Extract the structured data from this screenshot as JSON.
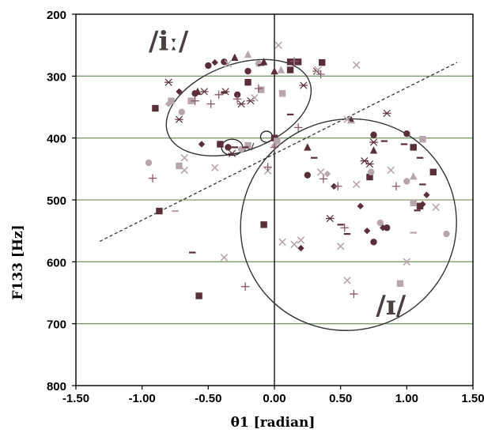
{
  "chart_data": {
    "type": "scatter",
    "title": "",
    "xlabel": "θ1 [radian]",
    "ylabel": "F133 [Hz]",
    "xlim": [
      -1.5,
      1.5
    ],
    "ylim": [
      200,
      800
    ],
    "y_reversed": true,
    "x_ticks": [
      -1.5,
      -1.0,
      -0.5,
      0.0,
      0.5,
      1.0,
      1.5
    ],
    "x_tick_labels": [
      "-1.50",
      "-1.00",
      "-0.50",
      "0.00",
      "0.50",
      "1.00",
      "1.50"
    ],
    "y_ticks": [
      200,
      300,
      400,
      500,
      600,
      700,
      800
    ],
    "y_tick_labels": [
      "200",
      "300",
      "400",
      "500",
      "600",
      "700",
      "800"
    ],
    "horizontal_gridlines": [
      300,
      400,
      500,
      600,
      700
    ],
    "gridline_color": "#7f9a6a",
    "colors": {
      "dark": "#5a2f3a",
      "mid": "#8a5a6a",
      "light": "#b8a6ad",
      "lighter": "#cfc0c5"
    },
    "regions": [
      {
        "label": "/iː/",
        "cx": -0.27,
        "cy": 351,
        "rx": 0.57,
        "ry": 70,
        "rotation_deg": -20,
        "label_x": -0.8,
        "label_y": 258
      },
      {
        "label": "/ɪ/",
        "cx": 0.56,
        "cy": 540,
        "rx": 0.82,
        "ry": 170,
        "rotation_deg": -25,
        "label_x": 0.88,
        "label_y": 685
      }
    ],
    "small_circles": [
      {
        "cx": -0.32,
        "cy": 415,
        "rx": 0.08,
        "ry": 13
      },
      {
        "cx": -0.06,
        "cy": 398,
        "rx": 0.045,
        "ry": 9
      }
    ],
    "small_labels": [
      {
        "text": "/ɪ/",
        "x": -0.19,
        "y": 418
      }
    ],
    "dashed_line": {
      "x1": -1.32,
      "y1": 567,
      "x2": 1.38,
      "y2": 278
    },
    "series": [
      {
        "marker": "square",
        "color": "dark",
        "points": [
          [
            -0.9,
            352
          ],
          [
            -0.2,
            310
          ],
          [
            0.12,
            277
          ],
          [
            0.18,
            277
          ],
          [
            0.36,
            278
          ],
          [
            0.0,
            400
          ],
          [
            1.05,
            415
          ],
          [
            1.2,
            455
          ],
          [
            0.72,
            463
          ],
          [
            -0.87,
            518
          ],
          [
            -0.57,
            655
          ],
          [
            -0.08,
            540
          ],
          [
            1.1,
            510
          ],
          [
            -0.41,
            410
          ],
          [
            0.12,
            290
          ]
        ]
      },
      {
        "marker": "square",
        "color": "light",
        "points": [
          [
            -0.78,
            340
          ],
          [
            -0.63,
            340
          ],
          [
            -0.1,
            322
          ],
          [
            0.06,
            328
          ],
          [
            -0.72,
            445
          ],
          [
            0.95,
            635
          ],
          [
            1.05,
            505
          ],
          [
            1.12,
            402
          ],
          [
            0.02,
            405
          ],
          [
            -0.2,
            412
          ]
        ]
      },
      {
        "marker": "circle",
        "color": "dark",
        "points": [
          [
            -0.5,
            283
          ],
          [
            -0.38,
            277
          ],
          [
            -0.2,
            292
          ],
          [
            -0.28,
            330
          ],
          [
            -0.6,
            328
          ],
          [
            -0.35,
            415
          ],
          [
            0.75,
            395
          ],
          [
            1.0,
            393
          ],
          [
            0.85,
            545
          ],
          [
            0.75,
            568
          ],
          [
            0.25,
            460
          ]
        ]
      },
      {
        "marker": "circle",
        "color": "light",
        "points": [
          [
            -0.95,
            440
          ],
          [
            -0.7,
            358
          ],
          [
            -0.25,
            418
          ],
          [
            0.73,
            455
          ],
          [
            1.0,
            470
          ],
          [
            1.3,
            555
          ],
          [
            -0.12,
            280
          ],
          [
            0.8,
            537
          ]
        ]
      },
      {
        "marker": "triangle",
        "color": "dark",
        "points": [
          [
            -0.3,
            270
          ],
          [
            -0.58,
            325
          ],
          [
            -0.08,
            277
          ],
          [
            0.0,
            292
          ],
          [
            0.25,
            415
          ],
          [
            0.75,
            420
          ],
          [
            0.58,
            371
          ]
        ]
      },
      {
        "marker": "triangle",
        "color": "light",
        "points": [
          [
            -0.2,
            265
          ],
          [
            1.05,
            462
          ],
          [
            0.05,
            290
          ]
        ]
      },
      {
        "marker": "diamond",
        "color": "dark",
        "points": [
          [
            -0.45,
            278
          ],
          [
            -0.72,
            325
          ],
          [
            -0.55,
            410
          ],
          [
            1.12,
            507
          ],
          [
            0.65,
            510
          ],
          [
            0.82,
            545
          ],
          [
            1.15,
            492
          ],
          [
            0.7,
            550
          ],
          [
            0.45,
            478
          ],
          [
            0.2,
            578
          ]
        ]
      },
      {
        "marker": "diamond",
        "color": "light",
        "points": [
          [
            -0.8,
            345
          ],
          [
            0.4,
            458
          ],
          [
            0.0,
            412
          ]
        ]
      },
      {
        "marker": "star",
        "color": "dark",
        "points": [
          [
            -0.8,
            310
          ],
          [
            -0.53,
            325
          ],
          [
            -0.72,
            370
          ],
          [
            -0.37,
            325
          ],
          [
            -0.25,
            345
          ],
          [
            -0.18,
            340
          ],
          [
            0.22,
            315
          ],
          [
            0.75,
            407
          ],
          [
            0.85,
            360
          ],
          [
            0.42,
            530
          ],
          [
            0.68,
            437
          ],
          [
            0.72,
            442
          ],
          [
            -0.32,
            425
          ],
          [
            0.32,
            292
          ]
        ]
      },
      {
        "marker": "x",
        "color": "light",
        "points": [
          [
            -0.35,
            280
          ],
          [
            0.03,
            250
          ],
          [
            0.33,
            290
          ],
          [
            0.62,
            282
          ],
          [
            -0.15,
            335
          ],
          [
            -0.68,
            452
          ],
          [
            -0.45,
            448
          ],
          [
            -0.68,
            432
          ],
          [
            0.35,
            455
          ],
          [
            0.5,
            575
          ],
          [
            0.55,
            630
          ],
          [
            0.55,
            370
          ],
          [
            0.88,
            452
          ],
          [
            1.0,
            600
          ],
          [
            -0.38,
            593
          ],
          [
            0.15,
            572
          ],
          [
            -0.05,
            453
          ],
          [
            1.22,
            512
          ],
          [
            0.62,
            475
          ],
          [
            0.2,
            565
          ],
          [
            0.06,
            568
          ]
        ]
      },
      {
        "marker": "plus",
        "color": "mid",
        "points": [
          [
            -0.6,
            340
          ],
          [
            -0.48,
            345
          ],
          [
            -0.42,
            330
          ],
          [
            -0.28,
            337
          ],
          [
            -0.12,
            320
          ],
          [
            0.15,
            276
          ],
          [
            0.35,
            297
          ],
          [
            0.48,
            478
          ],
          [
            0.53,
            545
          ],
          [
            0.37,
            466
          ],
          [
            0.92,
            478
          ],
          [
            -0.92,
            465
          ],
          [
            -0.22,
            640
          ],
          [
            0.6,
            652
          ],
          [
            0.0,
            415
          ],
          [
            -0.05,
            447
          ],
          [
            0.18,
            383
          ]
        ]
      },
      {
        "marker": "dash",
        "color": "dark",
        "points": [
          [
            -0.38,
            327
          ],
          [
            -0.1,
            282
          ],
          [
            0.12,
            362
          ],
          [
            0.3,
            432
          ],
          [
            0.83,
            405
          ],
          [
            0.98,
            410
          ],
          [
            1.1,
            432
          ],
          [
            1.12,
            475
          ],
          [
            1.08,
            517
          ],
          [
            0.5,
            540
          ],
          [
            0.55,
            555
          ],
          [
            -0.62,
            585
          ],
          [
            -0.22,
            415
          ],
          [
            -0.3,
            415
          ]
        ]
      },
      {
        "marker": "dash",
        "color": "light",
        "points": [
          [
            -0.75,
            518
          ],
          [
            1.05,
            553
          ],
          [
            0.58,
            375
          ]
        ]
      }
    ]
  }
}
